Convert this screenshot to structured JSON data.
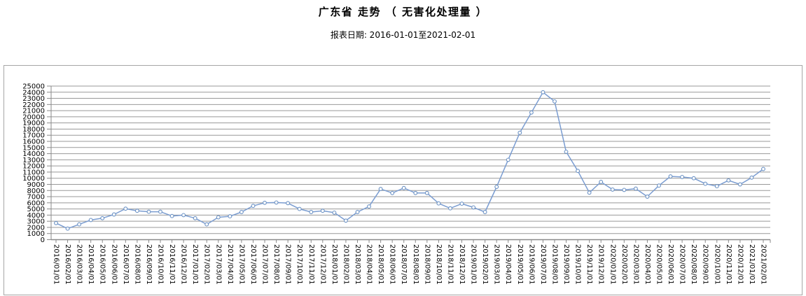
{
  "header": {
    "title": "广东省 走势 （ 无害化处理量 ）",
    "subtitle": "报表日期: 2016-01-01至2021-02-01"
  },
  "chart_data": {
    "type": "line",
    "title": "广东省 走势 （ 无害化处理量 ）",
    "subtitle": "报表日期: 2016-01-01至2021-02-01",
    "xlabel": "",
    "ylabel": "",
    "ylim": [
      0,
      25000
    ],
    "ytick_step": 1000,
    "grid": true,
    "legend_position": "none",
    "line_color": "#7b9dd1",
    "marker_style": "open-circle",
    "marker_fill": "#ffffff",
    "marker_stroke": "#6c92c4",
    "gridline_color": "#999999",
    "axis_color": "#8a8a8a",
    "tick_label_color": "#000000",
    "x": [
      "2016/01/01",
      "2016/02/01",
      "2016/03/01",
      "2016/04/01",
      "2016/05/01",
      "2016/06/01",
      "2016/07/01",
      "2016/08/01",
      "2016/09/01",
      "2016/10/01",
      "2016/11/01",
      "2016/12/01",
      "2017/01/01",
      "2017/02/01",
      "2017/03/01",
      "2017/04/01",
      "2017/05/01",
      "2017/06/01",
      "2017/07/01",
      "2017/08/01",
      "2017/09/01",
      "2017/10/01",
      "2017/11/01",
      "2017/12/01",
      "2018/01/01",
      "2018/02/01",
      "2018/03/01",
      "2018/04/01",
      "2018/05/01",
      "2018/06/01",
      "2018/07/01",
      "2018/08/01",
      "2018/09/01",
      "2018/10/01",
      "2018/11/01",
      "2018/12/01",
      "2019/01/01",
      "2019/02/01",
      "2019/03/01",
      "2019/04/01",
      "2019/05/01",
      "2019/06/01",
      "2019/07/01",
      "2019/08/01",
      "2019/09/01",
      "2019/10/01",
      "2019/11/01",
      "2019/12/01",
      "2020/01/01",
      "2020/02/01",
      "2020/03/01",
      "2020/04/01",
      "2020/05/01",
      "2020/06/01",
      "2020/07/01",
      "2020/08/01",
      "2020/09/01",
      "2020/10/01",
      "2020/11/01",
      "2020/12/01",
      "2021/01/01",
      "2021/02/01"
    ],
    "values": [
      2700,
      1800,
      2500,
      3200,
      3500,
      4100,
      5050,
      4700,
      4550,
      4550,
      3850,
      4000,
      3500,
      2500,
      3650,
      3800,
      4500,
      5500,
      6000,
      6050,
      5950,
      5000,
      4500,
      4700,
      4400,
      3100,
      4500,
      5400,
      8250,
      7600,
      8400,
      7600,
      7600,
      5900,
      5100,
      5850,
      5250,
      4500,
      8600,
      13000,
      17400,
      20700,
      24000,
      22500,
      14300,
      11200,
      7650,
      9400,
      8150,
      8100,
      8300,
      7000,
      8800,
      10300,
      10200,
      10000,
      9100,
      8700,
      9650,
      9000,
      10100,
      11500
    ]
  }
}
